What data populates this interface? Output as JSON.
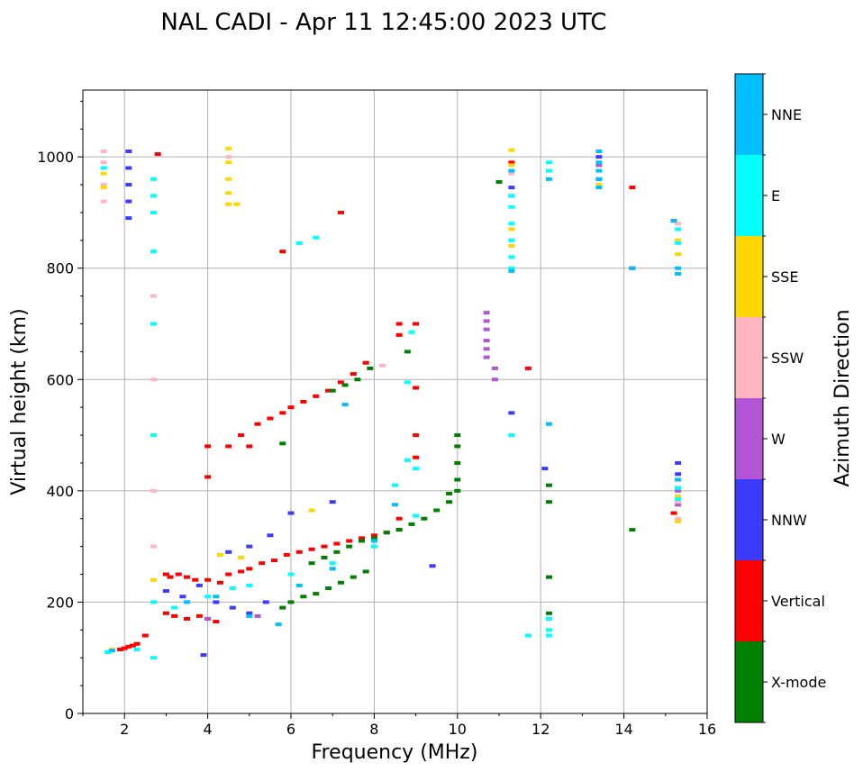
{
  "chart_data": {
    "type": "scatter",
    "title": "NAL CADI - Apr 11 12:45:00 2023 UTC",
    "xlabel": "Frequency (MHz)",
    "ylabel": "Virtual height (km)",
    "xlim": [
      1,
      16
    ],
    "ylim": [
      0,
      1120
    ],
    "xticks": [
      2,
      4,
      6,
      8,
      10,
      12,
      14,
      16
    ],
    "xtick_labels": [
      "2",
      "4",
      "6",
      "8",
      "10",
      "12",
      "14",
      "16"
    ],
    "yticks": [
      0,
      200,
      400,
      600,
      800,
      1000
    ],
    "ytick_labels": [
      "0",
      "200",
      "400",
      "600",
      "800",
      "1000"
    ],
    "grid": true,
    "colorbar": {
      "label": "Azimuth Direction",
      "categories": [
        {
          "name": "X-mode",
          "color": "#008000"
        },
        {
          "name": "Vertical",
          "color": "#ff0000"
        },
        {
          "name": "NNW",
          "color": "#3b3bff"
        },
        {
          "name": "W",
          "color": "#b455d5"
        },
        {
          "name": "SSW",
          "color": "#ffb6c1"
        },
        {
          "name": "SSE",
          "color": "#ffd700"
        },
        {
          "name": "E",
          "color": "#00ffff"
        },
        {
          "name": "NNE",
          "color": "#00bfff"
        }
      ]
    },
    "series": [
      {
        "name": "Vertical",
        "points": [
          [
            1.9,
            115
          ],
          [
            2.0,
            117
          ],
          [
            2.1,
            120
          ],
          [
            2.2,
            122
          ],
          [
            2.3,
            125
          ],
          [
            2.5,
            140
          ],
          [
            3.0,
            250
          ],
          [
            3.1,
            245
          ],
          [
            3.3,
            250
          ],
          [
            3.5,
            245
          ],
          [
            3.7,
            240
          ],
          [
            3.0,
            180
          ],
          [
            3.2,
            175
          ],
          [
            3.5,
            170
          ],
          [
            3.8,
            175
          ],
          [
            4.0,
            170
          ],
          [
            4.2,
            165
          ],
          [
            4.0,
            240
          ],
          [
            4.3,
            235
          ],
          [
            4.5,
            250
          ],
          [
            4.8,
            255
          ],
          [
            5.0,
            260
          ],
          [
            5.3,
            270
          ],
          [
            5.6,
            275
          ],
          [
            5.9,
            285
          ],
          [
            6.2,
            290
          ],
          [
            6.5,
            295
          ],
          [
            6.8,
            300
          ],
          [
            7.1,
            305
          ],
          [
            7.4,
            310
          ],
          [
            7.7,
            315
          ],
          [
            8.0,
            320
          ],
          [
            8.3,
            325
          ],
          [
            8.6,
            330
          ],
          [
            8.6,
            350
          ],
          [
            8.6,
            700
          ],
          [
            8.6,
            680
          ],
          [
            9.0,
            700
          ],
          [
            9.0,
            585
          ],
          [
            9.0,
            500
          ],
          [
            9.0,
            460
          ],
          [
            5.2,
            520
          ],
          [
            5.5,
            530
          ],
          [
            5.8,
            540
          ],
          [
            6.0,
            550
          ],
          [
            6.3,
            560
          ],
          [
            6.6,
            570
          ],
          [
            6.9,
            580
          ],
          [
            7.2,
            595
          ],
          [
            7.5,
            610
          ],
          [
            7.8,
            630
          ],
          [
            4.0,
            425
          ],
          [
            4.0,
            480
          ],
          [
            4.5,
            480
          ],
          [
            4.8,
            500
          ],
          [
            5.0,
            480
          ],
          [
            7.2,
            900
          ],
          [
            11.3,
            990
          ],
          [
            14.2,
            945
          ],
          [
            14.2,
            800
          ],
          [
            15.2,
            885
          ],
          [
            15.2,
            360
          ],
          [
            5.8,
            830
          ],
          [
            11.7,
            620
          ],
          [
            2.8,
            1005
          ]
        ]
      },
      {
        "name": "X-mode",
        "points": [
          [
            5.8,
            190
          ],
          [
            6.0,
            200
          ],
          [
            6.3,
            210
          ],
          [
            6.6,
            215
          ],
          [
            6.9,
            225
          ],
          [
            7.2,
            235
          ],
          [
            7.5,
            245
          ],
          [
            7.8,
            255
          ],
          [
            6.5,
            270
          ],
          [
            6.8,
            280
          ],
          [
            7.1,
            290
          ],
          [
            7.4,
            300
          ],
          [
            7.7,
            310
          ],
          [
            8.0,
            315
          ],
          [
            8.3,
            325
          ],
          [
            8.6,
            330
          ],
          [
            8.9,
            340
          ],
          [
            9.2,
            350
          ],
          [
            9.5,
            365
          ],
          [
            9.8,
            380
          ],
          [
            10.0,
            400
          ],
          [
            10.0,
            420
          ],
          [
            10.0,
            450
          ],
          [
            10.0,
            480
          ],
          [
            10.0,
            500
          ],
          [
            8.8,
            650
          ],
          [
            7.0,
            580
          ],
          [
            7.3,
            590
          ],
          [
            7.6,
            600
          ],
          [
            7.9,
            620
          ],
          [
            11.0,
            955
          ],
          [
            12.2,
            410
          ],
          [
            12.2,
            380
          ],
          [
            12.2,
            245
          ],
          [
            12.2,
            180
          ],
          [
            14.2,
            330
          ],
          [
            9.8,
            395
          ],
          [
            5.8,
            485
          ]
        ]
      },
      {
        "name": "NNW",
        "points": [
          [
            2.1,
            1010
          ],
          [
            2.1,
            980
          ],
          [
            2.1,
            950
          ],
          [
            2.1,
            920
          ],
          [
            2.1,
            890
          ],
          [
            3.0,
            220
          ],
          [
            3.4,
            210
          ],
          [
            3.8,
            230
          ],
          [
            4.2,
            200
          ],
          [
            4.6,
            190
          ],
          [
            5.0,
            180
          ],
          [
            5.4,
            200
          ],
          [
            4.5,
            290
          ],
          [
            5.0,
            300
          ],
          [
            5.5,
            320
          ],
          [
            6.0,
            360
          ],
          [
            7.0,
            380
          ],
          [
            11.3,
            945
          ],
          [
            11.3,
            540
          ],
          [
            12.1,
            440
          ],
          [
            15.3,
            450
          ],
          [
            15.3,
            430
          ],
          [
            15.3,
            405
          ],
          [
            9.4,
            265
          ],
          [
            3.9,
            105
          ],
          [
            13.4,
            1000
          ],
          [
            13.4,
            960
          ]
        ]
      },
      {
        "name": "W",
        "points": [
          [
            10.7,
            720
          ],
          [
            10.7,
            705
          ],
          [
            10.7,
            690
          ],
          [
            10.7,
            670
          ],
          [
            10.7,
            655
          ],
          [
            10.7,
            640
          ],
          [
            10.9,
            620
          ],
          [
            10.9,
            600
          ],
          [
            5.2,
            175
          ],
          [
            4.0,
            170
          ],
          [
            15.3,
            420
          ],
          [
            15.3,
            400
          ],
          [
            15.3,
            375
          ],
          [
            13.4,
            985
          ],
          [
            11.3,
            930
          ]
        ]
      },
      {
        "name": "SSW",
        "points": [
          [
            1.5,
            1010
          ],
          [
            1.5,
            990
          ],
          [
            1.5,
            950
          ],
          [
            1.5,
            920
          ],
          [
            2.7,
            750
          ],
          [
            2.7,
            600
          ],
          [
            2.7,
            400
          ],
          [
            2.7,
            300
          ],
          [
            8.2,
            625
          ],
          [
            15.3,
            880
          ],
          [
            15.3,
            825
          ],
          [
            15.3,
            790
          ],
          [
            15.3,
            380
          ],
          [
            15.3,
            350
          ],
          [
            11.3,
            970
          ],
          [
            4.5,
            1000
          ]
        ]
      },
      {
        "name": "SSE",
        "points": [
          [
            4.5,
            1015
          ],
          [
            4.5,
            990
          ],
          [
            4.5,
            960
          ],
          [
            4.5,
            935
          ],
          [
            4.5,
            915
          ],
          [
            4.7,
            915
          ],
          [
            1.5,
            970
          ],
          [
            1.5,
            945
          ],
          [
            11.3,
            1012
          ],
          [
            11.3,
            985
          ],
          [
            11.3,
            870
          ],
          [
            11.3,
            840
          ],
          [
            6.5,
            365
          ],
          [
            4.3,
            285
          ],
          [
            15.3,
            850
          ],
          [
            15.3,
            825
          ],
          [
            15.3,
            390
          ],
          [
            15.3,
            345
          ],
          [
            2.7,
            240
          ],
          [
            1.7,
            115
          ],
          [
            13.4,
            950
          ],
          [
            4.8,
            280
          ]
        ]
      },
      {
        "name": "E",
        "points": [
          [
            1.5,
            980
          ],
          [
            2.7,
            960
          ],
          [
            2.7,
            930
          ],
          [
            2.7,
            900
          ],
          [
            2.7,
            830
          ],
          [
            2.7,
            700
          ],
          [
            2.7,
            500
          ],
          [
            2.7,
            200
          ],
          [
            2.7,
            100
          ],
          [
            3.2,
            190
          ],
          [
            4.0,
            210
          ],
          [
            5.0,
            230
          ],
          [
            6.0,
            250
          ],
          [
            7.0,
            270
          ],
          [
            8.0,
            300
          ],
          [
            8.5,
            410
          ],
          [
            8.8,
            455
          ],
          [
            9.0,
            440
          ],
          [
            9.0,
            355
          ],
          [
            6.2,
            845
          ],
          [
            6.6,
            855
          ],
          [
            8.8,
            595
          ],
          [
            8.9,
            685
          ],
          [
            11.3,
            910
          ],
          [
            11.3,
            880
          ],
          [
            11.3,
            850
          ],
          [
            11.3,
            820
          ],
          [
            11.3,
            800
          ],
          [
            11.3,
            500
          ],
          [
            12.2,
            990
          ],
          [
            12.2,
            975
          ],
          [
            12.2,
            150
          ],
          [
            15.3,
            870
          ],
          [
            15.3,
            845
          ],
          [
            15.3,
            405
          ],
          [
            15.3,
            385
          ],
          [
            1.6,
            110
          ],
          [
            2.3,
            115
          ],
          [
            11.7,
            140
          ],
          [
            12.2,
            140
          ],
          [
            12.2,
            170
          ],
          [
            11.3,
            930
          ],
          [
            4.6,
            225
          ]
        ]
      },
      {
        "name": "NNE",
        "points": [
          [
            13.4,
            1010
          ],
          [
            13.4,
            990
          ],
          [
            13.4,
            975
          ],
          [
            13.4,
            960
          ],
          [
            13.4,
            945
          ],
          [
            12.2,
            960
          ],
          [
            12.2,
            520
          ],
          [
            15.3,
            800
          ],
          [
            15.3,
            790
          ],
          [
            15.3,
            420
          ],
          [
            15.2,
            885
          ],
          [
            5.7,
            160
          ],
          [
            5.0,
            175
          ],
          [
            6.2,
            230
          ],
          [
            7.0,
            260
          ],
          [
            8.0,
            310
          ],
          [
            8.5,
            375
          ],
          [
            7.3,
            555
          ],
          [
            4.2,
            210
          ],
          [
            3.5,
            200
          ],
          [
            1.7,
            113
          ],
          [
            11.3,
            975
          ],
          [
            11.3,
            795
          ],
          [
            14.2,
            800
          ]
        ]
      }
    ]
  }
}
